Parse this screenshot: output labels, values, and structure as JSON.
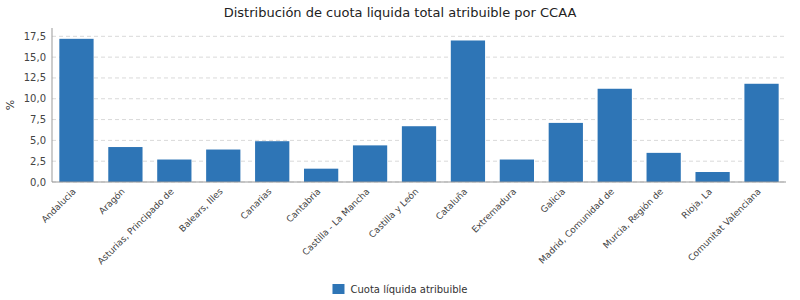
{
  "chart_data": {
    "type": "bar",
    "title": "Distribución de cuota liquida total atribuible por CCAA",
    "categories": [
      "Andalucia",
      "Aragón",
      "Asturias, Principado de",
      "Balears, Illes",
      "Canarias",
      "Cantabria",
      "Castilla - La Mancha",
      "Castilla y León",
      "Cataluña",
      "Extremadura",
      "Galicia",
      "Madrid, Comunidad de",
      "Murcia, Región de",
      "Rioja, La",
      "Comunitat Valenciana"
    ],
    "series": [
      {
        "name": "Cuota líquida atribuible",
        "color": "#2e75b6",
        "values": [
          17.2,
          4.2,
          2.7,
          3.9,
          4.9,
          1.6,
          4.4,
          6.7,
          17.0,
          2.7,
          7.1,
          11.2,
          3.5,
          1.2,
          11.8
        ]
      }
    ],
    "ylabel": "%",
    "ylim": [
      0,
      18.5
    ],
    "yticks": [
      {
        "value": 0.0,
        "label": "0,0"
      },
      {
        "value": 2.5,
        "label": "2,5"
      },
      {
        "value": 5.0,
        "label": "5,0"
      },
      {
        "value": 7.5,
        "label": "7,5"
      },
      {
        "value": 10.0,
        "label": "10,0"
      },
      {
        "value": 12.5,
        "label": "12,5"
      },
      {
        "value": 15.0,
        "label": "15,0"
      },
      {
        "value": 17.5,
        "label": "17,5"
      }
    ],
    "grid": true,
    "legend": "bottom"
  }
}
